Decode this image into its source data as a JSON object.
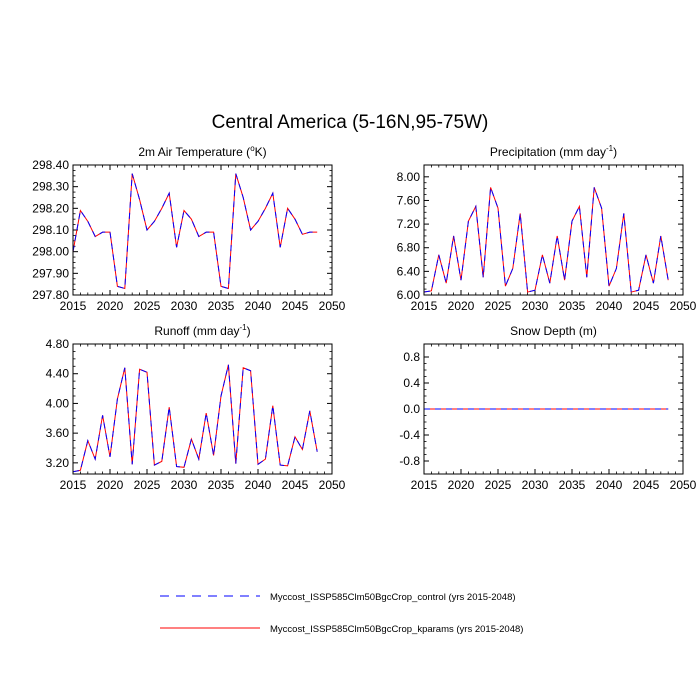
{
  "figure": {
    "title": "Central America (5-16N,95-75W)"
  },
  "legend": {
    "items": [
      {
        "label": "Myccost_ISSP585Clm50BgcCrop_control (yrs 2015-2048)",
        "color": "#0000ff",
        "style": "dashed"
      },
      {
        "label": "Myccost_ISSP585Clm50BgcCrop_kparams (yrs 2015-2048)",
        "color": "#ff0000",
        "style": "solid"
      }
    ]
  },
  "chart_data": [
    {
      "type": "line",
      "title": "2m Air Temperature (",
      "title_sup": "o",
      "title_end": "K)",
      "xlim": [
        2015,
        2050
      ],
      "ylim": [
        297.8,
        298.4
      ],
      "xticks": [
        2015,
        2020,
        2025,
        2030,
        2035,
        2040,
        2045,
        2050
      ],
      "xtick_labels": [
        "2015",
        "2020",
        "2025",
        "2030",
        "2035",
        "2040",
        "2045",
        "2050"
      ],
      "yticks": [
        297.8,
        297.9,
        298.0,
        298.1,
        298.2,
        298.3,
        298.4
      ],
      "ytick_labels": [
        "297.80",
        "297.90",
        "298.00",
        "298.10",
        "298.20",
        "298.30",
        "298.40"
      ],
      "x": [
        2015,
        2016,
        2017,
        2018,
        2019,
        2020,
        2021,
        2022,
        2023,
        2024,
        2025,
        2026,
        2027,
        2028,
        2029,
        2030,
        2031,
        2032,
        2033,
        2034,
        2035,
        2036,
        2037,
        2038,
        2039,
        2040,
        2041,
        2042,
        2043,
        2044,
        2045,
        2046,
        2047,
        2048
      ],
      "series": [
        {
          "name": "control",
          "values": [
            298.0,
            298.19,
            298.14,
            298.07,
            298.09,
            298.09,
            297.84,
            297.83,
            298.36,
            298.24,
            298.1,
            298.14,
            298.2,
            298.27,
            298.02,
            298.19,
            298.15,
            298.07,
            298.09,
            298.09,
            297.84,
            297.83,
            298.36,
            298.25,
            298.1,
            298.14,
            298.2,
            298.27,
            298.02,
            298.2,
            298.15,
            298.08,
            298.09,
            298.09
          ]
        },
        {
          "name": "kparams",
          "values": [
            298.0,
            298.19,
            298.14,
            298.07,
            298.09,
            298.09,
            297.84,
            297.83,
            298.36,
            298.24,
            298.1,
            298.14,
            298.2,
            298.27,
            298.02,
            298.19,
            298.15,
            298.07,
            298.09,
            298.09,
            297.84,
            297.83,
            298.36,
            298.25,
            298.1,
            298.14,
            298.2,
            298.27,
            298.02,
            298.2,
            298.15,
            298.08,
            298.09,
            298.09
          ]
        }
      ]
    },
    {
      "type": "line",
      "title": "Precipitation (mm day",
      "title_sup": "-1",
      "title_end": ")",
      "xlim": [
        2015,
        2050
      ],
      "ylim": [
        6.0,
        8.2
      ],
      "xticks": [
        2015,
        2020,
        2025,
        2030,
        2035,
        2040,
        2045,
        2050
      ],
      "xtick_labels": [
        "2015",
        "2020",
        "2025",
        "2030",
        "2035",
        "2040",
        "2045",
        "2050"
      ],
      "yticks": [
        6.0,
        6.4,
        6.8,
        7.2,
        7.6,
        8.0
      ],
      "ytick_labels": [
        "6.00",
        "6.40",
        "6.80",
        "7.20",
        "7.60",
        "8.00"
      ],
      "x": [
        2015,
        2016,
        2017,
        2018,
        2019,
        2020,
        2021,
        2022,
        2023,
        2024,
        2025,
        2026,
        2027,
        2028,
        2029,
        2030,
        2031,
        2032,
        2033,
        2034,
        2035,
        2036,
        2037,
        2038,
        2039,
        2040,
        2041,
        2042,
        2043,
        2044,
        2045,
        2046,
        2047,
        2048
      ],
      "series": [
        {
          "name": "control",
          "values": [
            6.05,
            6.07,
            6.68,
            6.2,
            7.0,
            6.25,
            7.25,
            7.5,
            6.3,
            7.82,
            7.47,
            6.15,
            6.45,
            7.38,
            6.05,
            6.08,
            6.68,
            6.2,
            7.0,
            6.25,
            7.25,
            7.5,
            6.3,
            7.82,
            7.47,
            6.15,
            6.45,
            7.38,
            6.05,
            6.08,
            6.68,
            6.2,
            7.0,
            6.25
          ]
        },
        {
          "name": "kparams",
          "values": [
            6.05,
            6.07,
            6.68,
            6.2,
            7.0,
            6.25,
            7.25,
            7.5,
            6.3,
            7.82,
            7.47,
            6.15,
            6.45,
            7.38,
            6.05,
            6.08,
            6.68,
            6.2,
            7.0,
            6.25,
            7.25,
            7.5,
            6.3,
            7.82,
            7.47,
            6.15,
            6.45,
            7.38,
            6.05,
            6.08,
            6.68,
            6.2,
            7.0,
            6.25
          ]
        }
      ]
    },
    {
      "type": "line",
      "title": "Runoff (mm day",
      "title_sup": "-1",
      "title_end": ")",
      "xlim": [
        2015,
        2050
      ],
      "ylim": [
        3.05,
        4.8
      ],
      "xticks": [
        2015,
        2020,
        2025,
        2030,
        2035,
        2040,
        2045,
        2050
      ],
      "xtick_labels": [
        "2015",
        "2020",
        "2025",
        "2030",
        "2035",
        "2040",
        "2045",
        "2050"
      ],
      "yticks": [
        3.2,
        3.6,
        4.0,
        4.4,
        4.8
      ],
      "ytick_labels": [
        "3.20",
        "3.60",
        "4.00",
        "4.40",
        "4.80"
      ],
      "x": [
        2015,
        2016,
        2017,
        2018,
        2019,
        2020,
        2021,
        2022,
        2023,
        2024,
        2025,
        2026,
        2027,
        2028,
        2029,
        2030,
        2031,
        2032,
        2033,
        2034,
        2035,
        2036,
        2037,
        2038,
        2039,
        2040,
        2041,
        2042,
        2043,
        2044,
        2045,
        2046,
        2047,
        2048
      ],
      "series": [
        {
          "name": "control",
          "values": [
            3.08,
            3.1,
            3.5,
            3.25,
            3.84,
            3.28,
            4.06,
            4.48,
            3.18,
            4.46,
            4.42,
            3.17,
            3.22,
            3.95,
            3.15,
            3.14,
            3.52,
            3.25,
            3.87,
            3.3,
            4.1,
            4.52,
            3.19,
            4.48,
            4.44,
            3.18,
            3.25,
            3.97,
            3.17,
            3.16,
            3.55,
            3.38,
            3.9,
            3.35
          ]
        },
        {
          "name": "kparams",
          "values": [
            3.08,
            3.1,
            3.5,
            3.25,
            3.84,
            3.28,
            4.06,
            4.48,
            3.18,
            4.46,
            4.42,
            3.17,
            3.22,
            3.95,
            3.15,
            3.14,
            3.52,
            3.25,
            3.87,
            3.3,
            4.1,
            4.52,
            3.19,
            4.48,
            4.44,
            3.18,
            3.25,
            3.97,
            3.17,
            3.16,
            3.55,
            3.38,
            3.9,
            3.35
          ]
        }
      ]
    },
    {
      "type": "line",
      "title": "Snow Depth (m)",
      "title_sup": "",
      "title_end": "",
      "xlim": [
        2015,
        2050
      ],
      "ylim": [
        -1.0,
        1.0
      ],
      "xticks": [
        2015,
        2020,
        2025,
        2030,
        2035,
        2040,
        2045,
        2050
      ],
      "xtick_labels": [
        "2015",
        "2020",
        "2025",
        "2030",
        "2035",
        "2040",
        "2045",
        "2050"
      ],
      "yticks": [
        -0.8,
        -0.4,
        0.0,
        0.4,
        0.8
      ],
      "ytick_labels": [
        "-0.8",
        "-0.4",
        "0.0",
        "0.4",
        "0.8"
      ],
      "x": [
        2015,
        2016,
        2017,
        2018,
        2019,
        2020,
        2021,
        2022,
        2023,
        2024,
        2025,
        2026,
        2027,
        2028,
        2029,
        2030,
        2031,
        2032,
        2033,
        2034,
        2035,
        2036,
        2037,
        2038,
        2039,
        2040,
        2041,
        2042,
        2043,
        2044,
        2045,
        2046,
        2047,
        2048
      ],
      "series": [
        {
          "name": "control",
          "values": [
            0,
            0,
            0,
            0,
            0,
            0,
            0,
            0,
            0,
            0,
            0,
            0,
            0,
            0,
            0,
            0,
            0,
            0,
            0,
            0,
            0,
            0,
            0,
            0,
            0,
            0,
            0,
            0,
            0,
            0,
            0,
            0,
            0,
            0
          ]
        },
        {
          "name": "kparams",
          "values": [
            0,
            0,
            0,
            0,
            0,
            0,
            0,
            0,
            0,
            0,
            0,
            0,
            0,
            0,
            0,
            0,
            0,
            0,
            0,
            0,
            0,
            0,
            0,
            0,
            0,
            0,
            0,
            0,
            0,
            0,
            0,
            0,
            0,
            0
          ]
        }
      ]
    }
  ]
}
